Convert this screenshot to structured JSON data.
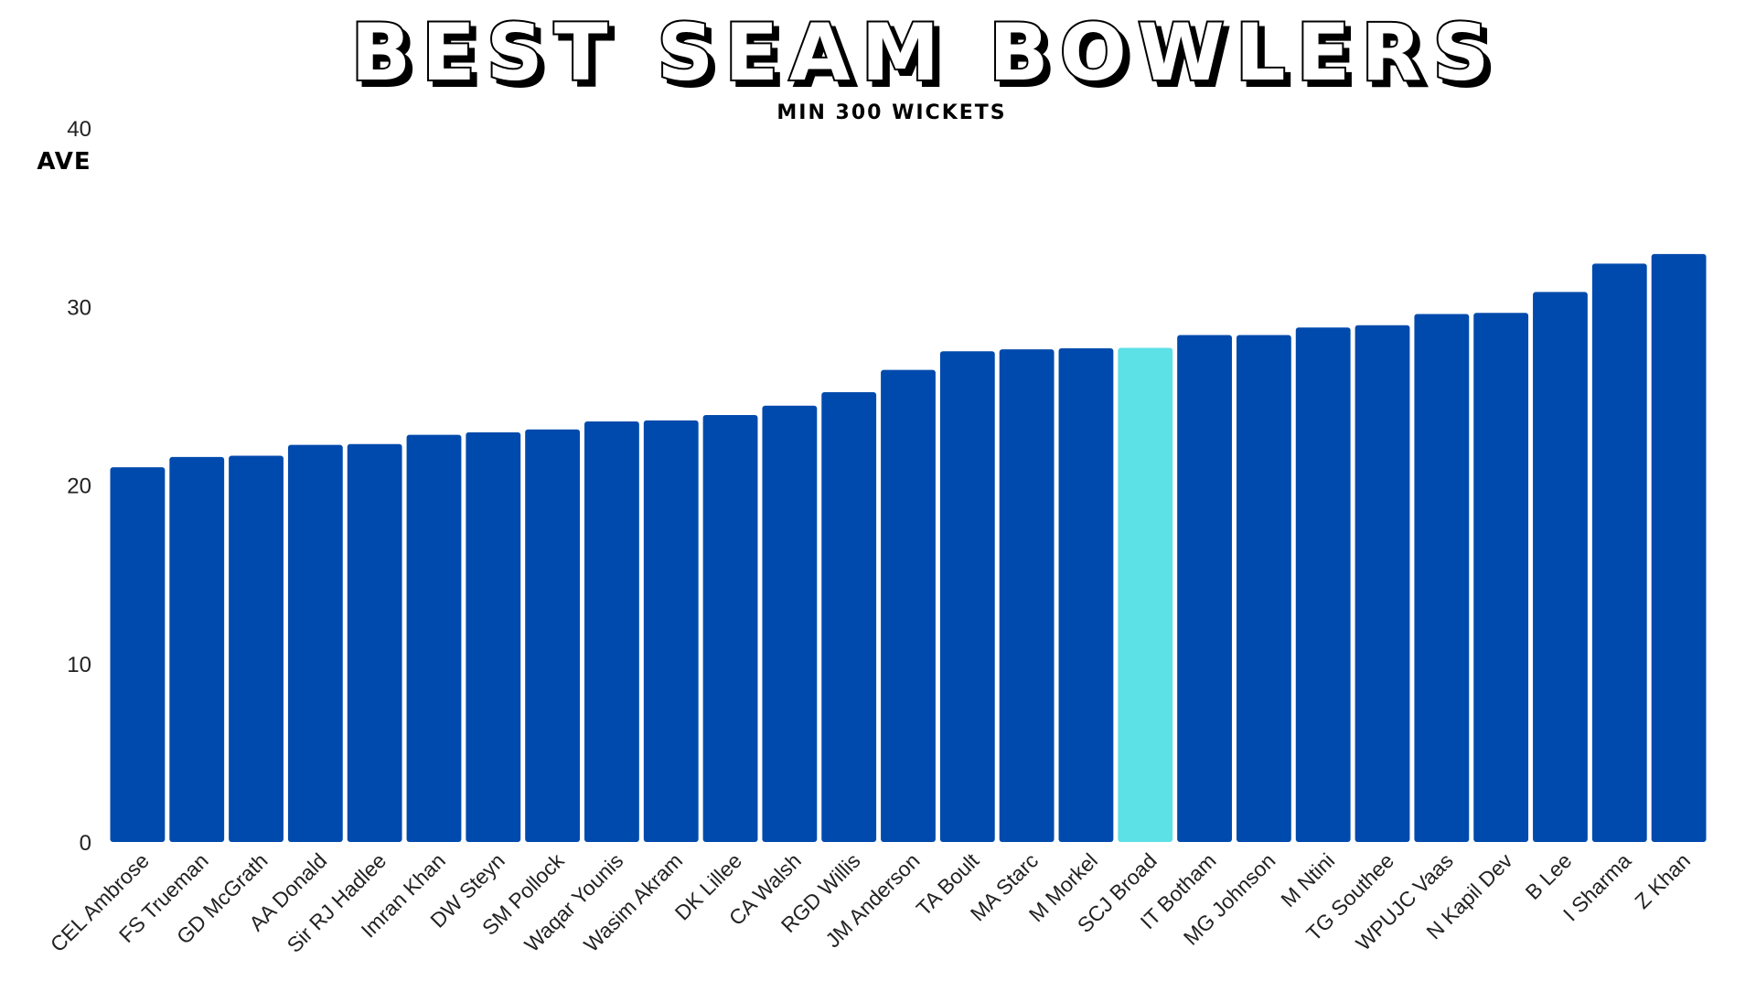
{
  "chart_data": {
    "type": "bar",
    "title": "BEST SEAM BOWLERS",
    "subtitle": "MIN 300 WICKETS",
    "xlabel": "",
    "ylabel": "AVE",
    "ylim": [
      0,
      40
    ],
    "yticks": [
      "0",
      "10",
      "20",
      "30",
      "40"
    ],
    "grid": false,
    "legend": "none",
    "categories": [
      "CEL Ambrose",
      "FS Trueman",
      "GD McGrath",
      "AA Donald",
      "Sir RJ Hadlee",
      "Imran Khan",
      "DW Steyn",
      "SM Pollock",
      "Waqar Younis",
      "Wasim Akram",
      "DK Lillee",
      "CA Walsh",
      "RGD Willis",
      "JM Anderson",
      "TA Boult",
      "MA Starc",
      "M Morkel",
      "SCJ Broad",
      "IT Botham",
      "MG Johnson",
      "M Ntini",
      "TG Southee",
      "WPUJC Vaas",
      "N Kapil Dev",
      "B Lee",
      "I Sharma",
      "Z Khan"
    ],
    "values": [
      20.99,
      21.57,
      21.64,
      22.25,
      22.29,
      22.81,
      22.95,
      23.11,
      23.56,
      23.62,
      23.92,
      24.44,
      25.2,
      26.45,
      27.49,
      27.6,
      27.66,
      27.68,
      28.4,
      28.4,
      28.82,
      28.95,
      29.58,
      29.64,
      30.81,
      32.4,
      32.94
    ],
    "highlight_category": "SCJ Broad",
    "colors": {
      "bar": "#004aad",
      "highlight": "#5ce1e6",
      "title_fill": "#ffffff",
      "title_shadow": "#000000",
      "text": "#222222"
    }
  }
}
